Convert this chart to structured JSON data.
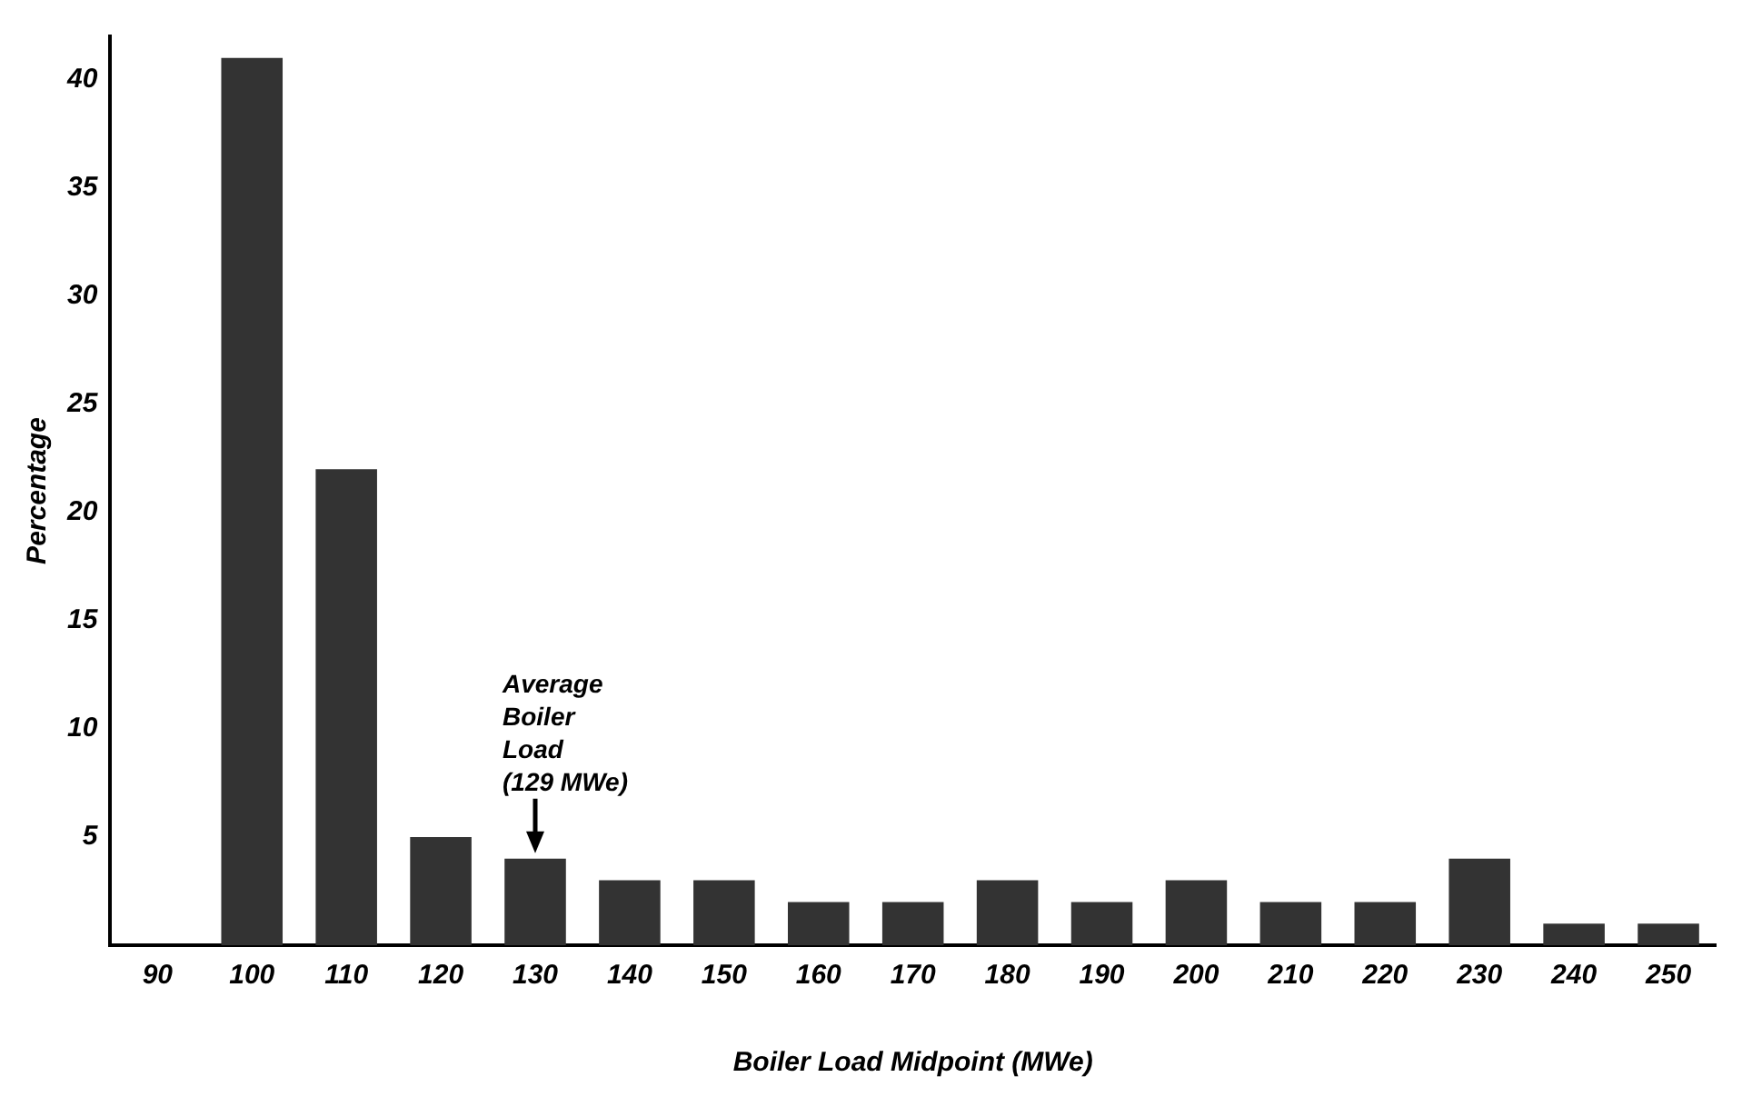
{
  "chart_data": {
    "type": "bar",
    "xlabel": "Boiler Load Midpoint (MWe)",
    "ylabel": "Percentage",
    "categories": [
      "90",
      "100",
      "110",
      "120",
      "130",
      "140",
      "150",
      "160",
      "170",
      "180",
      "190",
      "200",
      "210",
      "220",
      "230",
      "240",
      "250"
    ],
    "values": [
      0,
      41,
      22,
      5,
      4,
      3,
      3,
      2,
      2,
      3,
      2,
      3,
      2,
      2,
      4,
      1,
      1
    ],
    "color": "#333333",
    "ylim": [
      0,
      42
    ],
    "yticks": [
      5,
      10,
      15,
      20,
      25,
      30,
      35,
      40
    ],
    "grid": false,
    "legend": false,
    "annotations": [
      {
        "text": "Average\nBoiler\nLoad\n(129 MWe)",
        "x": "130",
        "y": 4
      }
    ]
  }
}
